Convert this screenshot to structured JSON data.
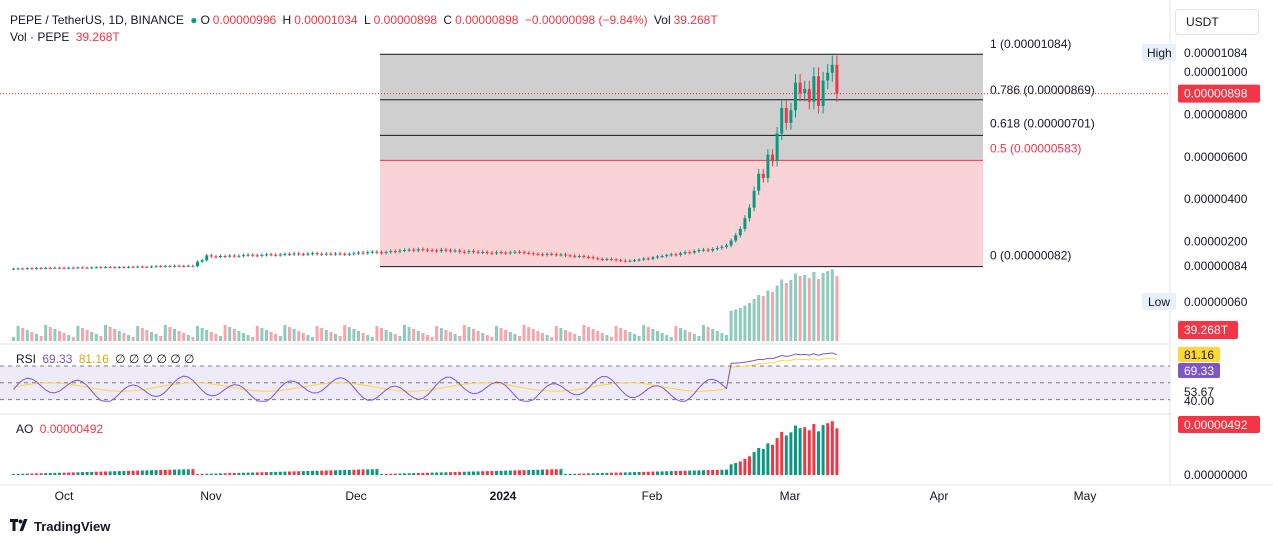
{
  "header": {
    "symbol": "PEPE / TetherUS, 1D, BINANCE",
    "o_label": "O",
    "o_value": "0.00000996",
    "h_label": "H",
    "h_value": "0.00001034",
    "l_label": "L",
    "l_value": "0.00000898",
    "c_label": "C",
    "c_value": "0.00000898",
    "change": "−0.00000098 (−9.84%)",
    "vol_label": "Vol",
    "vol_value": "39.268T",
    "vol_row_label": "Vol · PEPE",
    "vol_row_value": "39.268T"
  },
  "currency_button": "USDT",
  "footer": {
    "brand": "TradingView"
  },
  "colors": {
    "up": "#089981",
    "down": "#f23645",
    "rsi": "#7e57c2",
    "rsi_ma": "#fdd835",
    "axis_text": "#131722"
  },
  "chart_data": [
    {
      "type": "candlestick",
      "name": "price",
      "x_labels": [
        "Oct",
        "Nov",
        "Dec",
        "2024",
        "Feb",
        "Mar",
        "Apr",
        "May"
      ],
      "y_ticks": [
        "0.00001000",
        "0.00000800",
        "0.00000600",
        "0.00000400",
        "0.00000200",
        "0.00000084"
      ],
      "y_tick_values": [
        1e-05,
        8e-06,
        6e-06,
        4e-06,
        2e-06,
        8.4e-07
      ],
      "high_label": "High",
      "high_value": "0.00001084",
      "low_label": "Low",
      "low_value": "0.00000060",
      "last_price": "0.00000898",
      "volume_badge": "39.268T",
      "fib_levels": [
        {
          "label": "1 (0.00001084)",
          "value": 1.084e-05,
          "color": "#131722"
        },
        {
          "label": "0.786 (0.00000869)",
          "value": 8.69e-06,
          "color": "#131722"
        },
        {
          "label": "0.618 (0.00000701)",
          "value": 7.01e-06,
          "color": "#131722"
        },
        {
          "label": "0.5 (0.00000583)",
          "value": 5.83e-06,
          "color": "#f23645"
        },
        {
          "label": "0 (0.00000082)",
          "value": 8.2e-07,
          "color": "#131722"
        }
      ],
      "closes": [
        0.72,
        0.73,
        0.72,
        0.74,
        0.73,
        0.75,
        0.74,
        0.76,
        0.75,
        0.77,
        0.76,
        0.75,
        0.77,
        0.76,
        0.78,
        0.77,
        0.76,
        0.78,
        0.79,
        0.78,
        0.8,
        0.79,
        0.78,
        0.8,
        0.79,
        0.81,
        0.8,
        0.82,
        0.81,
        0.8,
        0.82,
        0.84,
        0.83,
        0.85,
        0.84,
        0.86,
        0.85,
        0.84,
        0.86,
        0.85,
        1.05,
        1.12,
        1.35,
        1.3,
        1.28,
        1.32,
        1.3,
        1.34,
        1.31,
        1.33,
        1.36,
        1.38,
        1.35,
        1.33,
        1.37,
        1.4,
        1.38,
        1.36,
        1.39,
        1.42,
        1.4,
        1.44,
        1.41,
        1.39,
        1.43,
        1.45,
        1.42,
        1.4,
        1.43,
        1.41,
        1.44,
        1.42,
        1.4,
        1.42,
        1.45,
        1.48,
        1.46,
        1.5,
        1.52,
        1.49,
        1.47,
        1.51,
        1.55,
        1.53,
        1.58,
        1.6,
        1.62,
        1.58,
        1.64,
        1.62,
        1.6,
        1.58,
        1.55,
        1.62,
        1.59,
        1.56,
        1.58,
        1.52,
        1.5,
        1.55,
        1.52,
        1.49,
        1.51,
        1.47,
        1.45,
        1.5,
        1.48,
        1.46,
        1.49,
        1.52,
        1.5,
        1.47,
        1.45,
        1.42,
        1.4,
        1.38,
        1.42,
        1.4,
        1.37,
        1.39,
        1.35,
        1.33,
        1.3,
        1.32,
        1.28,
        1.26,
        1.22,
        1.18,
        1.15,
        1.18,
        1.16,
        1.12,
        1.1,
        1.08,
        1.1,
        1.12,
        1.15,
        1.2,
        1.18,
        1.25,
        1.3,
        1.32,
        1.36,
        1.4,
        1.38,
        1.45,
        1.5,
        1.48,
        1.55,
        1.6,
        1.62,
        1.58,
        1.65,
        1.7,
        1.75,
        1.82,
        2.05,
        2.3,
        2.6,
        3.1,
        3.6,
        4.4,
        5.2,
        5.0,
        6.1,
        5.8,
        7.1,
        8.3,
        7.6,
        8.2,
        9.5,
        9.0,
        9.2,
        8.6,
        9.8,
        8.4,
        9.6,
        9.96,
        10.34,
        8.98
      ]
    },
    {
      "type": "line",
      "name": "RSI",
      "legend_label": "RSI",
      "rsi_value": "69.33",
      "rsi_ma_value": "81.16",
      "zeros": "∅ ∅ ∅ ∅ ∅ ∅",
      "badges": [
        "81.16",
        "69.33",
        "53.67",
        "40.00"
      ],
      "levels": [
        70,
        50,
        30
      ],
      "ylim": [
        20,
        95
      ]
    },
    {
      "type": "bar",
      "name": "AO",
      "legend_label": "AO",
      "ao_value": "0.00000492",
      "y_ticks": [
        "0.00000000"
      ],
      "badge": "0.00000492"
    }
  ]
}
